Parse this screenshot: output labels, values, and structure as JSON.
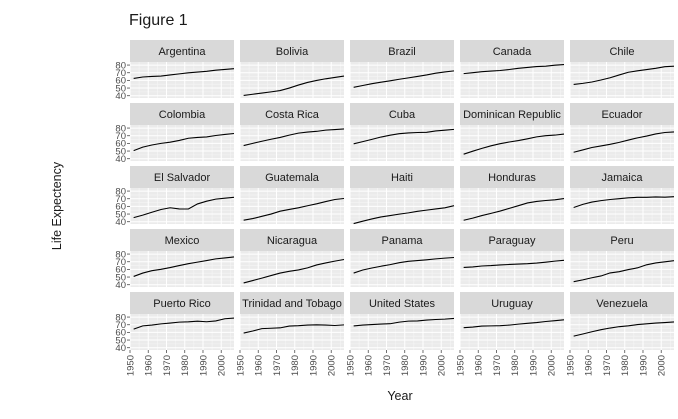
{
  "chart_data": {
    "type": "line",
    "title": "Figure 1",
    "xlabel": "Year",
    "ylabel": "Life Expectency",
    "xlim": [
      1950,
      2007
    ],
    "ylim": [
      37,
      84
    ],
    "xticks": [
      1950,
      1960,
      1970,
      1980,
      1990,
      2000
    ],
    "yticks": [
      40,
      50,
      60,
      70,
      80
    ],
    "ytick_labels": [
      "40",
      "50",
      "60",
      "70",
      "80"
    ],
    "grid": true,
    "x": [
      1952,
      1957,
      1962,
      1967,
      1972,
      1977,
      1982,
      1987,
      1992,
      1997,
      2002,
      2007
    ],
    "panels": [
      {
        "name": "Argentina",
        "values": [
          62.5,
          64.4,
          65.1,
          65.6,
          67.1,
          68.5,
          69.9,
          70.8,
          71.9,
          73.3,
          74.3,
          75.3
        ]
      },
      {
        "name": "Bolivia",
        "values": [
          40.4,
          41.9,
          43.4,
          45.0,
          46.7,
          50.0,
          53.9,
          57.3,
          59.9,
          62.1,
          63.9,
          65.6
        ]
      },
      {
        "name": "Brazil",
        "values": [
          50.9,
          53.3,
          55.7,
          57.6,
          59.5,
          61.5,
          63.3,
          65.2,
          67.1,
          69.4,
          71.0,
          72.4
        ]
      },
      {
        "name": "Canada",
        "values": [
          68.8,
          70.0,
          71.3,
          72.1,
          72.9,
          74.2,
          75.8,
          76.9,
          78.0,
          78.6,
          79.8,
          80.7
        ]
      },
      {
        "name": "Chile",
        "values": [
          54.7,
          56.1,
          57.9,
          60.5,
          63.4,
          67.1,
          70.6,
          72.5,
          74.1,
          75.8,
          77.9,
          78.6
        ]
      },
      {
        "name": "Colombia",
        "values": [
          50.6,
          55.1,
          57.9,
          60.0,
          61.6,
          63.8,
          66.7,
          67.8,
          68.4,
          70.3,
          71.7,
          72.9
        ]
      },
      {
        "name": "Costa Rica",
        "values": [
          57.2,
          60.0,
          62.8,
          65.4,
          67.8,
          70.8,
          73.4,
          74.8,
          75.7,
          77.3,
          78.1,
          78.8
        ]
      },
      {
        "name": "Cuba",
        "values": [
          59.4,
          62.3,
          65.2,
          68.3,
          70.7,
          72.6,
          73.7,
          74.2,
          74.4,
          76.2,
          77.2,
          78.3
        ]
      },
      {
        "name": "Dominican Republic",
        "values": [
          45.9,
          49.8,
          53.5,
          56.8,
          59.6,
          61.8,
          63.7,
          66.0,
          68.5,
          70.0,
          70.8,
          72.2
        ]
      },
      {
        "name": "Ecuador",
        "values": [
          48.4,
          51.4,
          54.6,
          56.7,
          58.8,
          61.3,
          64.3,
          67.2,
          69.6,
          72.3,
          74.2,
          75.0
        ]
      },
      {
        "name": "El Salvador",
        "values": [
          45.3,
          48.6,
          52.3,
          55.9,
          58.2,
          56.7,
          56.6,
          63.2,
          66.8,
          69.5,
          70.7,
          71.9
        ]
      },
      {
        "name": "Guatemala",
        "values": [
          42.0,
          44.1,
          47.0,
          50.0,
          53.7,
          56.0,
          58.1,
          60.8,
          63.4,
          66.3,
          68.98,
          70.3
        ]
      },
      {
        "name": "Haiti",
        "values": [
          37.6,
          40.7,
          43.6,
          46.2,
          48.0,
          49.9,
          51.5,
          53.6,
          55.1,
          56.7,
          58.1,
          60.9
        ]
      },
      {
        "name": "Honduras",
        "values": [
          41.9,
          44.7,
          48.0,
          50.9,
          53.9,
          57.4,
          60.9,
          64.5,
          66.4,
          67.7,
          68.6,
          70.2
        ]
      },
      {
        "name": "Jamaica",
        "values": [
          58.5,
          62.6,
          65.6,
          67.5,
          69.0,
          70.1,
          71.2,
          71.8,
          71.8,
          72.3,
          72.0,
          72.6
        ]
      },
      {
        "name": "Mexico",
        "values": [
          50.8,
          55.2,
          58.3,
          60.1,
          62.4,
          65.0,
          67.4,
          69.5,
          71.5,
          73.7,
          74.9,
          76.2
        ]
      },
      {
        "name": "Nicaragua",
        "values": [
          42.3,
          45.4,
          48.6,
          51.9,
          55.2,
          57.5,
          59.3,
          62.0,
          65.8,
          68.4,
          70.8,
          72.9
        ]
      },
      {
        "name": "Panama",
        "values": [
          55.2,
          59.2,
          61.8,
          64.1,
          66.2,
          68.7,
          70.5,
          71.5,
          72.5,
          73.7,
          74.7,
          75.5
        ]
      },
      {
        "name": "Paraguay",
        "values": [
          62.6,
          63.2,
          64.4,
          64.95,
          65.8,
          66.4,
          66.9,
          67.4,
          68.2,
          69.4,
          70.8,
          71.8
        ]
      },
      {
        "name": "Peru",
        "values": [
          43.9,
          46.3,
          49.1,
          51.4,
          55.4,
          57.0,
          59.8,
          62.0,
          66.0,
          68.4,
          69.9,
          71.4
        ]
      },
      {
        "name": "Puerto Rico",
        "values": [
          64.3,
          68.5,
          69.6,
          71.1,
          72.2,
          73.4,
          73.75,
          74.6,
          73.9,
          74.9,
          77.8,
          78.7
        ]
      },
      {
        "name": "Trinidad and Tobago",
        "values": [
          59.1,
          61.8,
          64.9,
          65.4,
          65.9,
          68.3,
          68.8,
          69.6,
          69.9,
          69.5,
          68.98,
          69.8
        ]
      },
      {
        "name": "United States",
        "values": [
          68.4,
          69.5,
          70.2,
          70.8,
          71.3,
          73.4,
          74.7,
          75.0,
          76.1,
          76.8,
          77.3,
          78.2
        ]
      },
      {
        "name": "Uruguay",
        "values": [
          66.1,
          67.0,
          68.3,
          68.5,
          68.7,
          69.5,
          70.8,
          71.9,
          72.8,
          74.2,
          75.3,
          76.4
        ]
      },
      {
        "name": "Venezuela",
        "values": [
          55.1,
          57.9,
          60.8,
          63.5,
          65.7,
          67.5,
          68.6,
          70.2,
          71.2,
          72.1,
          72.8,
          73.7
        ]
      }
    ],
    "colors": {
      "panel_bg": "#ebebeb",
      "strip_bg": "#d9d9d9",
      "grid_major": "#ffffff",
      "grid_minor": "#f5f5f5",
      "line": "#000000",
      "tick": "#4d4d4d",
      "text": "#1a1a1a"
    }
  }
}
